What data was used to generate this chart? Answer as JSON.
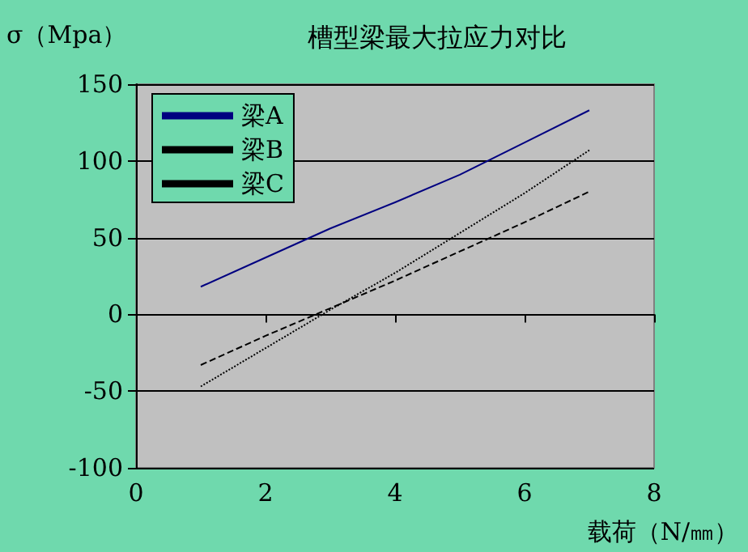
{
  "chart_data": {
    "type": "line",
    "title": "槽型梁最大拉应力对比",
    "xlabel": "载荷（N/㎜）",
    "ylabel": "σ（Mpa）",
    "x": [
      1,
      2,
      3,
      4,
      5,
      6,
      7
    ],
    "series": [
      {
        "name": "梁A",
        "color": "#000080",
        "line_style": "solid",
        "values": [
          18,
          37,
          56,
          73,
          91,
          112,
          133
        ]
      },
      {
        "name": "梁B",
        "color": "#000000",
        "line_style": "dashed",
        "values": [
          -33,
          -14,
          4,
          22,
          41,
          60,
          80
        ]
      },
      {
        "name": "梁C",
        "color": "#000000",
        "line_style": "dotted",
        "values": [
          -47,
          -22,
          3,
          27,
          53,
          79,
          107
        ]
      }
    ],
    "xlim": [
      0,
      8
    ],
    "xticks": [
      0,
      2,
      4,
      6,
      8
    ],
    "ylim": [
      -100,
      150
    ],
    "yticks": [
      -100,
      -50,
      0,
      50,
      100,
      150
    ],
    "grid": "y",
    "legend": "top left",
    "marker": "none"
  }
}
